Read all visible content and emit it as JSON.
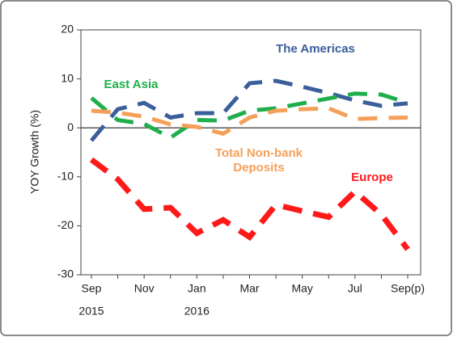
{
  "chart_data": {
    "type": "line",
    "y_label": "YOY Growth (%)",
    "categories": [
      "Sep",
      null,
      "Nov",
      null,
      "Jan",
      null,
      "Mar",
      null,
      "May",
      null,
      "Jul",
      null,
      "Sep(p)"
    ],
    "x_sublabels": [
      "2015",
      null,
      null,
      null,
      "2016",
      null,
      null,
      null,
      null,
      null,
      null,
      null,
      null
    ],
    "ylim": [
      -30,
      20
    ],
    "yticks": [
      -30,
      -20,
      -10,
      0,
      10,
      20
    ],
    "series": [
      {
        "name": "The Americas",
        "color": "#3a5f9a",
        "values": [
          -2.6,
          3.8,
          5.1,
          2.1,
          3,
          3,
          9.1,
          9.6,
          8.4,
          7.1,
          5.6,
          4.5,
          5
        ]
      },
      {
        "name": "East Asia",
        "color": "#1fae4c",
        "values": [
          6.1,
          1.6,
          0.8,
          -2,
          1.6,
          1.5,
          3.5,
          4,
          5,
          6,
          7,
          6.8,
          5.1
        ]
      },
      {
        "name": "Total Non-bank Deposits",
        "color": "#f5a05a",
        "values": [
          3.5,
          3.1,
          2.3,
          0.7,
          0.2,
          -1.2,
          2.1,
          3.5,
          3.8,
          4,
          1.8,
          2,
          2.1
        ]
      },
      {
        "name": "Europe",
        "color": "#ff1a1a",
        "values": [
          -6.5,
          -10.5,
          -16.6,
          -16.3,
          -21.5,
          -18.8,
          -22.3,
          -15.7,
          -17,
          -18.2,
          -13,
          -17.7,
          -24.8
        ]
      }
    ]
  }
}
